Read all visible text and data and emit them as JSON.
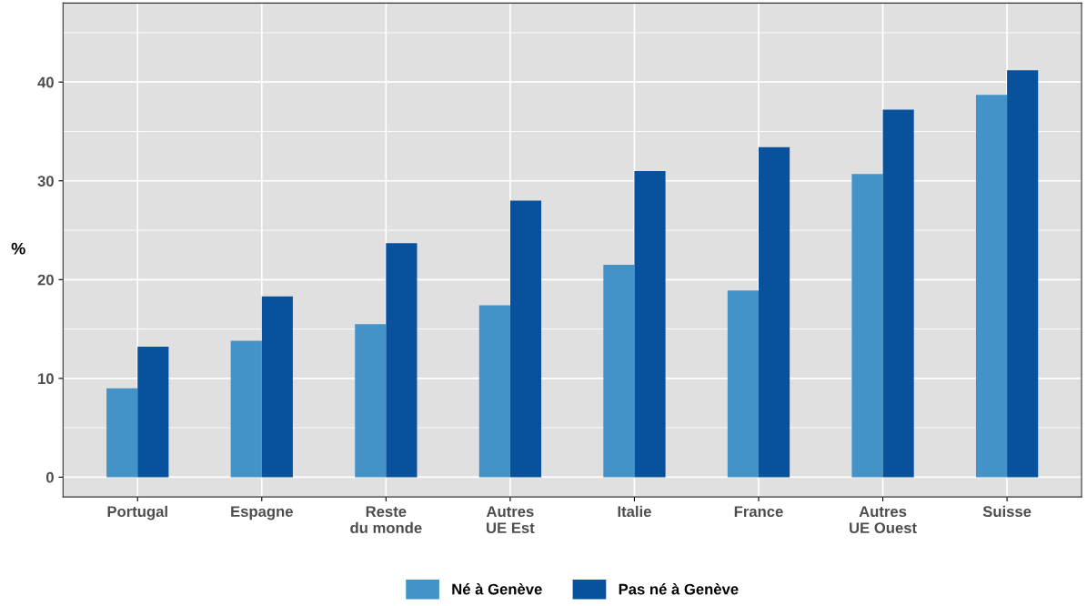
{
  "chart_data": {
    "type": "bar",
    "ylabel": "%",
    "categories": [
      "Portugal",
      "Espagne",
      "Reste\ndu monde",
      "Autres\nUE Est",
      "Italie",
      "France",
      "Autres\nUE Ouest",
      "Suisse"
    ],
    "series": [
      {
        "name": "Né à Genève",
        "color": "#4393c8",
        "values": [
          9.0,
          13.8,
          15.5,
          17.4,
          21.5,
          18.9,
          30.7,
          38.7
        ]
      },
      {
        "name": "Pas né à Genève",
        "color": "#08519c",
        "values": [
          13.2,
          18.3,
          23.7,
          28.0,
          31.0,
          33.4,
          37.2,
          41.2
        ]
      }
    ],
    "ylim": [
      -2,
      48
    ],
    "yticks": [
      0,
      10,
      20,
      30,
      40
    ],
    "grid": true,
    "legend": "bottom"
  }
}
